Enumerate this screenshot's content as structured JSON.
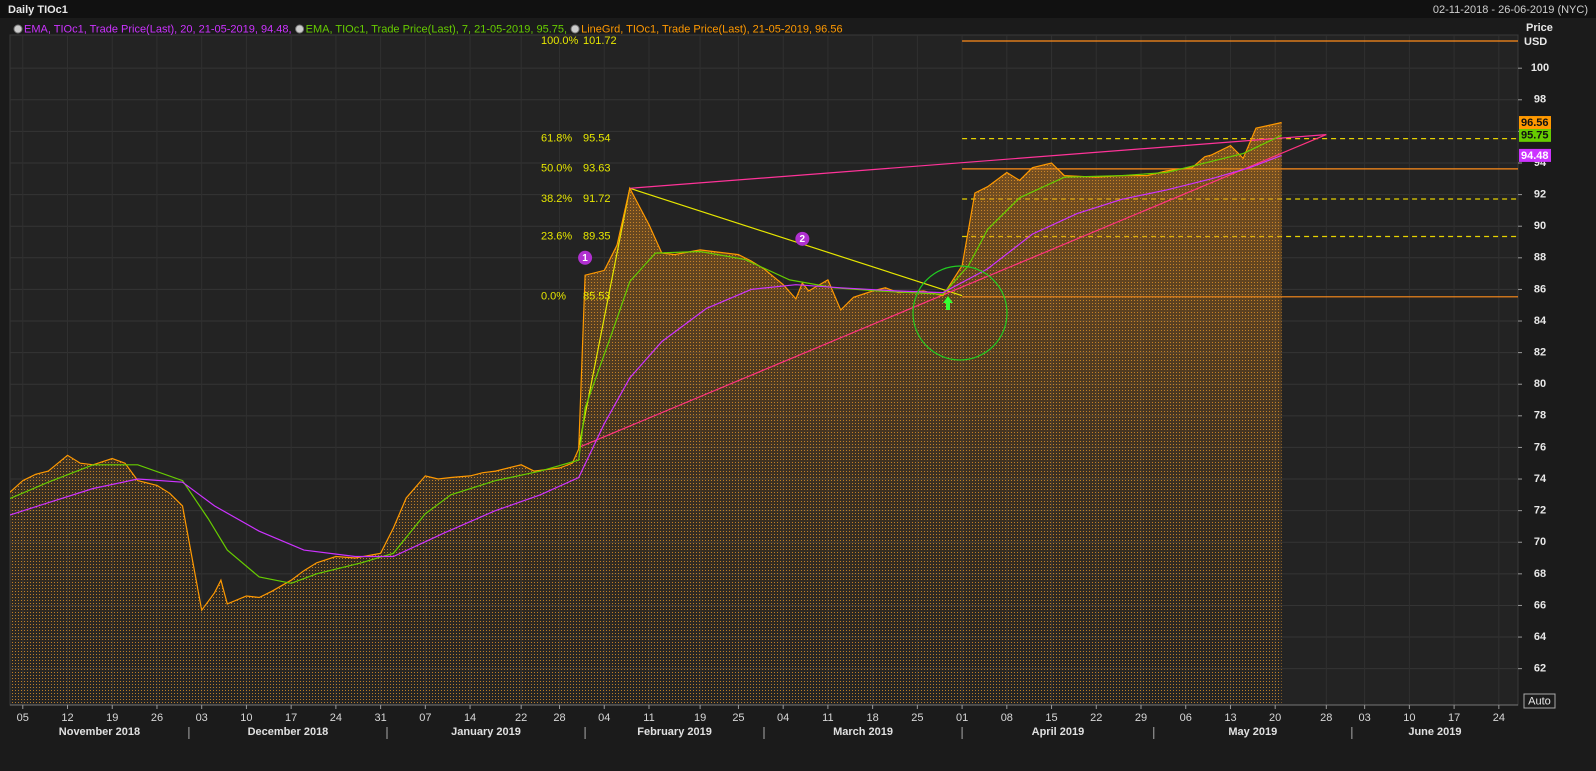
{
  "chart_data": {
    "type": "line",
    "title": "Daily TIOc1",
    "date_range": "02-11-2018 - 26-06-2019 (NYC)",
    "y_axis_label": "Price",
    "y_axis_unit": "USD",
    "button": "Auto",
    "xlim": [
      "2018-11-03",
      "2019-06-27"
    ],
    "ylim": [
      59.7,
      102.1
    ],
    "yticks": [
      62,
      64,
      66,
      68,
      70,
      72,
      74,
      76,
      78,
      80,
      82,
      84,
      86,
      88,
      90,
      92,
      94,
      96,
      98,
      100
    ],
    "grid": true,
    "xticks": [
      {
        "value": "2018-11-05",
        "label": "05"
      },
      {
        "value": "2018-11-12",
        "label": "12"
      },
      {
        "value": "2018-11-19",
        "label": "19"
      },
      {
        "value": "2018-11-26",
        "label": "26"
      },
      {
        "value": "2018-12-03",
        "label": "03"
      },
      {
        "value": "2018-12-10",
        "label": "10"
      },
      {
        "value": "2018-12-17",
        "label": "17"
      },
      {
        "value": "2018-12-24",
        "label": "24"
      },
      {
        "value": "2018-12-31",
        "label": "31"
      },
      {
        "value": "2019-01-07",
        "label": "07"
      },
      {
        "value": "2019-01-14",
        "label": "14"
      },
      {
        "value": "2019-01-22",
        "label": "22"
      },
      {
        "value": "2019-01-28",
        "label": "28"
      },
      {
        "value": "2019-02-04",
        "label": "04"
      },
      {
        "value": "2019-02-11",
        "label": "11"
      },
      {
        "value": "2019-02-19",
        "label": "19"
      },
      {
        "value": "2019-02-25",
        "label": "25"
      },
      {
        "value": "2019-03-04",
        "label": "04"
      },
      {
        "value": "2019-03-11",
        "label": "11"
      },
      {
        "value": "2019-03-18",
        "label": "18"
      },
      {
        "value": "2019-03-25",
        "label": "25"
      },
      {
        "value": "2019-04-01",
        "label": "01"
      },
      {
        "value": "2019-04-08",
        "label": "08"
      },
      {
        "value": "2019-04-15",
        "label": "15"
      },
      {
        "value": "2019-04-22",
        "label": "22"
      },
      {
        "value": "2019-04-29",
        "label": "29"
      },
      {
        "value": "2019-05-06",
        "label": "06"
      },
      {
        "value": "2019-05-13",
        "label": "13"
      },
      {
        "value": "2019-05-20",
        "label": "20"
      },
      {
        "value": "2019-05-28",
        "label": "28"
      },
      {
        "value": "2019-06-03",
        "label": "03"
      },
      {
        "value": "2019-06-10",
        "label": "10"
      },
      {
        "value": "2019-06-17",
        "label": "17"
      },
      {
        "value": "2019-06-24",
        "label": "24"
      }
    ],
    "month_labels": [
      {
        "value": "2018-11",
        "label": "November 2018"
      },
      {
        "value": "2018-12",
        "label": "December 2018"
      },
      {
        "value": "2019-01",
        "label": "January 2019"
      },
      {
        "value": "2019-02",
        "label": "February 2019"
      },
      {
        "value": "2019-03",
        "label": "March 2019"
      },
      {
        "value": "2019-04",
        "label": "April 2019"
      },
      {
        "value": "2019-05",
        "label": "May 2019"
      },
      {
        "value": "2019-06",
        "label": "June 2019"
      }
    ],
    "series": [
      {
        "name": "EMA, TIOc1, Trade Price(Last),  20, 21-05-2019, 94.48,",
        "color": "#cc33ff",
        "x": [
          "2018-11-02",
          "2018-11-09",
          "2018-11-16",
          "2018-11-23",
          "2018-11-30",
          "2018-12-05",
          "2018-12-12",
          "2018-12-19",
          "2018-12-27",
          "2019-01-02",
          "2019-01-10",
          "2019-01-18",
          "2019-01-25",
          "2019-01-31",
          "2019-02-04",
          "2019-02-08",
          "2019-02-13",
          "2019-02-20",
          "2019-02-27",
          "2019-03-06",
          "2019-03-13",
          "2019-03-22",
          "2019-03-29",
          "2019-04-05",
          "2019-04-12",
          "2019-04-19",
          "2019-04-26",
          "2019-05-03",
          "2019-05-10",
          "2019-05-16",
          "2019-05-21"
        ],
        "values": [
          71.6,
          72.5,
          73.4,
          74.0,
          73.8,
          72.3,
          70.7,
          69.5,
          69.1,
          69.1,
          70.6,
          72.0,
          73.0,
          74.1,
          77.5,
          80.4,
          82.7,
          84.8,
          86.0,
          86.3,
          86.1,
          85.9,
          85.8,
          87.3,
          89.5,
          90.8,
          91.7,
          92.3,
          93.0,
          93.7,
          94.48
        ]
      },
      {
        "name": "EMA, TIOc1, Trade Price(Last),  7, 21-05-2019, 95.75,",
        "color": "#66cc00",
        "x": [
          "2018-11-02",
          "2018-11-09",
          "2018-11-16",
          "2018-11-23",
          "2018-11-30",
          "2018-12-04",
          "2018-12-07",
          "2018-12-12",
          "2018-12-17",
          "2018-12-21",
          "2018-12-28",
          "2019-01-02",
          "2019-01-07",
          "2019-01-11",
          "2019-01-18",
          "2019-01-25",
          "2019-01-31",
          "2019-02-01",
          "2019-02-05",
          "2019-02-08",
          "2019-02-12",
          "2019-02-19",
          "2019-02-26",
          "2019-03-05",
          "2019-03-12",
          "2019-03-19",
          "2019-03-29",
          "2019-04-02",
          "2019-04-05",
          "2019-04-10",
          "2019-04-17",
          "2019-04-26",
          "2019-05-03",
          "2019-05-10",
          "2019-05-15",
          "2019-05-21"
        ],
        "values": [
          72.6,
          73.8,
          74.9,
          74.9,
          73.9,
          71.5,
          69.5,
          67.8,
          67.4,
          68.0,
          68.7,
          69.3,
          71.8,
          73.0,
          73.9,
          74.5,
          75.2,
          78.5,
          83,
          86.5,
          88.3,
          88.4,
          87.9,
          86.6,
          86.1,
          85.9,
          85.7,
          87.5,
          89.8,
          91.8,
          93.1,
          93.2,
          93.4,
          94.1,
          94.6,
          95.75
        ]
      },
      {
        "name": "LineGrd, TIOc1, Trade Price(Last), 21-05-2019, 96.56",
        "color": "#ff9900",
        "area": true,
        "x": [
          "2018-11-02",
          "2018-11-05",
          "2018-11-07",
          "2018-11-09",
          "2018-11-12",
          "2018-11-14",
          "2018-11-16",
          "2018-11-19",
          "2018-11-21",
          "2018-11-23",
          "2018-11-26",
          "2018-11-28",
          "2018-11-30",
          "2018-12-03",
          "2018-12-05",
          "2018-12-06",
          "2018-12-07",
          "2018-12-10",
          "2018-12-12",
          "2018-12-14",
          "2018-12-17",
          "2018-12-19",
          "2018-12-21",
          "2018-12-24",
          "2018-12-27",
          "2018-12-31",
          "2019-01-02",
          "2019-01-04",
          "2019-01-07",
          "2019-01-09",
          "2019-01-11",
          "2019-01-14",
          "2019-01-16",
          "2019-01-18",
          "2019-01-22",
          "2019-01-24",
          "2019-01-28",
          "2019-01-30",
          "2019-01-31",
          "2019-02-01",
          "2019-02-04",
          "2019-02-06",
          "2019-02-08",
          "2019-02-11",
          "2019-02-13",
          "2019-02-15",
          "2019-02-19",
          "2019-02-21",
          "2019-02-25",
          "2019-02-27",
          "2019-03-01",
          "2019-03-04",
          "2019-03-06",
          "2019-03-07",
          "2019-03-08",
          "2019-03-11",
          "2019-03-13",
          "2019-03-15",
          "2019-03-18",
          "2019-03-20",
          "2019-03-22",
          "2019-03-26",
          "2019-03-29",
          "2019-04-01",
          "2019-04-03",
          "2019-04-05",
          "2019-04-08",
          "2019-04-10",
          "2019-04-12",
          "2019-04-15",
          "2019-04-17",
          "2019-04-22",
          "2019-04-26",
          "2019-04-30",
          "2019-05-03",
          "2019-05-07",
          "2019-05-09",
          "2019-05-10",
          "2019-05-13",
          "2019-05-15",
          "2019-05-17",
          "2019-05-21"
        ],
        "values": [
          72.8,
          73.9,
          74.3,
          74.5,
          75.5,
          75.0,
          74.9,
          75.3,
          75.0,
          73.9,
          73.6,
          73.1,
          72.3,
          65.7,
          66.8,
          67.6,
          66.1,
          66.6,
          66.5,
          66.9,
          67.6,
          68.2,
          68.7,
          69.1,
          69.0,
          69.3,
          70.9,
          72.8,
          74.2,
          74.0,
          74.1,
          74.2,
          74.4,
          74.5,
          74.9,
          74.5,
          74.7,
          75.0,
          75.9,
          86.9,
          87.2,
          88.8,
          92.4,
          90.1,
          88.3,
          88.2,
          88.5,
          88.4,
          88.2,
          87.8,
          87.3,
          86.3,
          85.4,
          86.4,
          85.9,
          86.6,
          84.7,
          85.5,
          85.9,
          86.1,
          85.8,
          85.9,
          85.6,
          87.5,
          92.1,
          92.5,
          93.4,
          92.9,
          93.7,
          94.0,
          93.2,
          93.1,
          93.2,
          93.2,
          93.5,
          93.7,
          94.4,
          94.5,
          95.1,
          94.3,
          96.2,
          96.56
        ]
      }
    ],
    "fib": {
      "start": "2019-04-01",
      "solid_color": "#ff8c1a",
      "dashed_color": "#e6d200",
      "levels": [
        {
          "label": "100.0%",
          "value": 101.72,
          "style": "solid"
        },
        {
          "label": "61.8%",
          "value": 95.54,
          "style": "dashed"
        },
        {
          "label": "50.0%",
          "value": 93.63,
          "style": "solid"
        },
        {
          "label": "38.2%",
          "value": 91.72,
          "style": "dashed"
        },
        {
          "label": "23.6%",
          "value": 89.35,
          "style": "dashed"
        },
        {
          "label": "0.0%",
          "value": 85.53,
          "style": "solid"
        }
      ]
    },
    "trendlines": [
      {
        "color": "#e6e600",
        "x": [
          "2019-01-31",
          "2019-02-08",
          "2019-04-01"
        ],
        "values": [
          76.0,
          92.4,
          85.6
        ]
      },
      {
        "color": "#ff3399",
        "x": [
          "2019-02-08",
          "2019-05-28"
        ],
        "values": [
          92.4,
          95.8
        ]
      },
      {
        "color": "#ff3380",
        "x": [
          "2019-01-31",
          "2019-05-28"
        ],
        "values": [
          76.0,
          95.8
        ]
      }
    ],
    "annotations": [
      {
        "label": "1",
        "x": "2019-02-01",
        "y": 88.0
      },
      {
        "label": "2",
        "x": "2019-03-07",
        "y": 89.2
      }
    ]
  }
}
